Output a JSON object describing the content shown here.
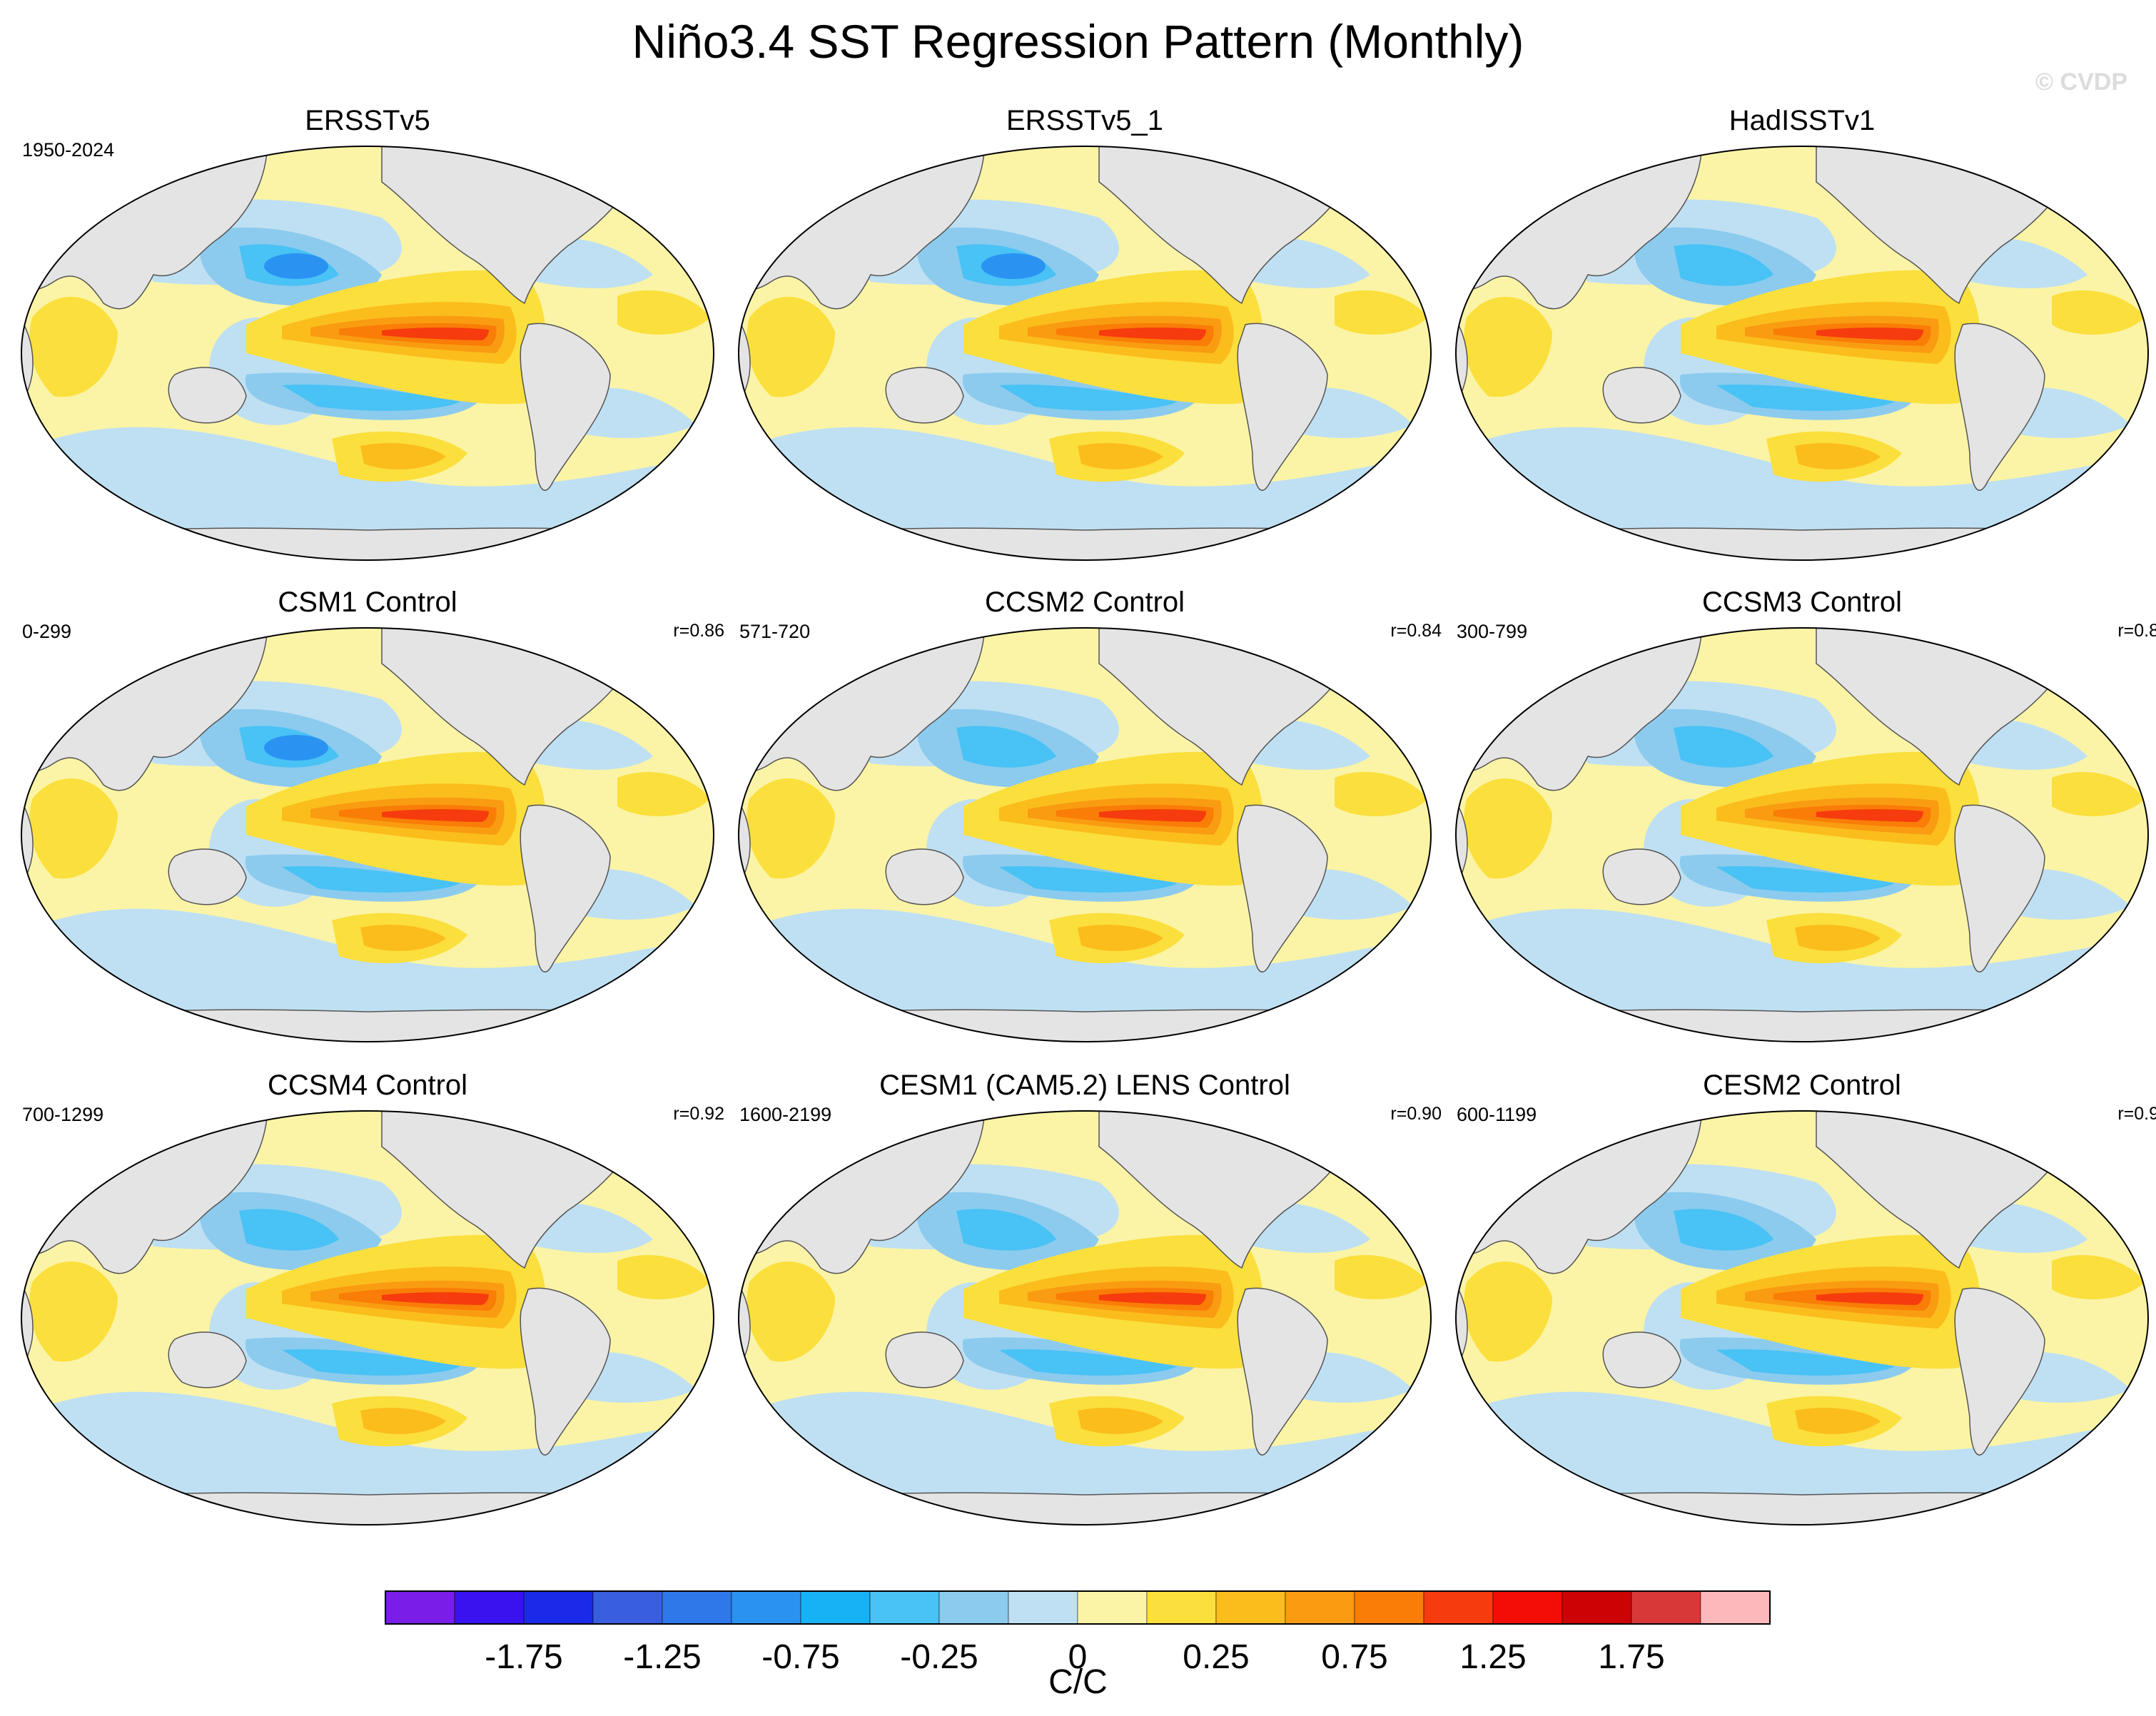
{
  "figure": {
    "title": "Niño3.4 SST Regression Pattern (Monthly)",
    "watermark": "© CVDP"
  },
  "panels": [
    {
      "title": "ERSSTv5",
      "years": "1950-2024",
      "corr": ""
    },
    {
      "title": "ERSSTv5_1",
      "years": "",
      "corr": ""
    },
    {
      "title": "HadISSTv1",
      "years": "",
      "corr": ""
    },
    {
      "title": "CSM1 Control",
      "years": "0-299",
      "corr": "r=0.86"
    },
    {
      "title": "CCSM2 Control",
      "years": "571-720",
      "corr": "r=0.84"
    },
    {
      "title": "CCSM3 Control",
      "years": "300-799",
      "corr": "r=0.8"
    },
    {
      "title": "CCSM4 Control",
      "years": "700-1299",
      "corr": "r=0.92"
    },
    {
      "title": "CESM1 (CAM5.2) LENS Control",
      "years": "1600-2199",
      "corr": "r=0.90"
    },
    {
      "title": "CESM2 Control",
      "years": "600-1199",
      "corr": "r=0.9"
    }
  ],
  "colorbar": {
    "unit": "C/C",
    "colors": [
      "#7a1de6",
      "#3a12f0",
      "#1a2ae8",
      "#3a5ee0",
      "#2f78ea",
      "#2a93f2",
      "#17b2f5",
      "#49c2f5",
      "#8ccbee",
      "#bfe0f3",
      "#fbf4a6",
      "#fbdf3c",
      "#fbbd1c",
      "#f99c11",
      "#f97d07",
      "#f63b0e",
      "#f40d06",
      "#cc0204",
      "#d83838",
      "#fcb8bb"
    ],
    "tick_labels": [
      "-1.75",
      "-1.25",
      "-0.75",
      "-0.25",
      "0",
      "0.25",
      "0.75",
      "1.25",
      "1.75"
    ]
  },
  "chart_data": {
    "type": "heatmap",
    "title": "Niño3.4 SST Regression Pattern (Monthly)",
    "variable": "SST regression onto Niño3.4 index",
    "units": "C/C",
    "levels": [
      -2.0,
      -1.75,
      -1.5,
      -1.25,
      -1.0,
      -0.75,
      -0.5,
      -0.25,
      -0.1,
      0,
      0.1,
      0.25,
      0.5,
      0.75,
      1.0,
      1.25,
      1.5,
      1.75,
      2.0
    ],
    "colorbar_ticks": [
      -1.75,
      -1.25,
      -0.75,
      -0.25,
      0,
      0.25,
      0.75,
      1.25,
      1.75
    ],
    "panels": [
      {
        "name": "ERSSTv5",
        "period": "1950-2024",
        "eq_pacific_max": 1.4
      },
      {
        "name": "ERSSTv5_1",
        "period": "",
        "eq_pacific_max": 1.4
      },
      {
        "name": "HadISSTv1",
        "period": "",
        "eq_pacific_max": 1.5
      },
      {
        "name": "CSM1 Control",
        "period": "0-299",
        "pattern_corr": 0.86,
        "eq_pacific_max": 1.5
      },
      {
        "name": "CCSM2 Control",
        "period": "571-720",
        "pattern_corr": 0.84,
        "eq_pacific_max": 1.4
      },
      {
        "name": "CCSM3 Control",
        "period": "300-799",
        "pattern_corr": 0.8,
        "eq_pacific_max": 1.5
      },
      {
        "name": "CCSM4 Control",
        "period": "700-1299",
        "pattern_corr": 0.92,
        "eq_pacific_max": 1.4
      },
      {
        "name": "CESM1 (CAM5.2) LENS Control",
        "period": "1600-2199",
        "pattern_corr": 0.9,
        "eq_pacific_max": 1.4
      },
      {
        "name": "CESM2 Control",
        "period": "600-1199",
        "pattern_corr": 0.9,
        "eq_pacific_max": 1.4
      }
    ]
  }
}
